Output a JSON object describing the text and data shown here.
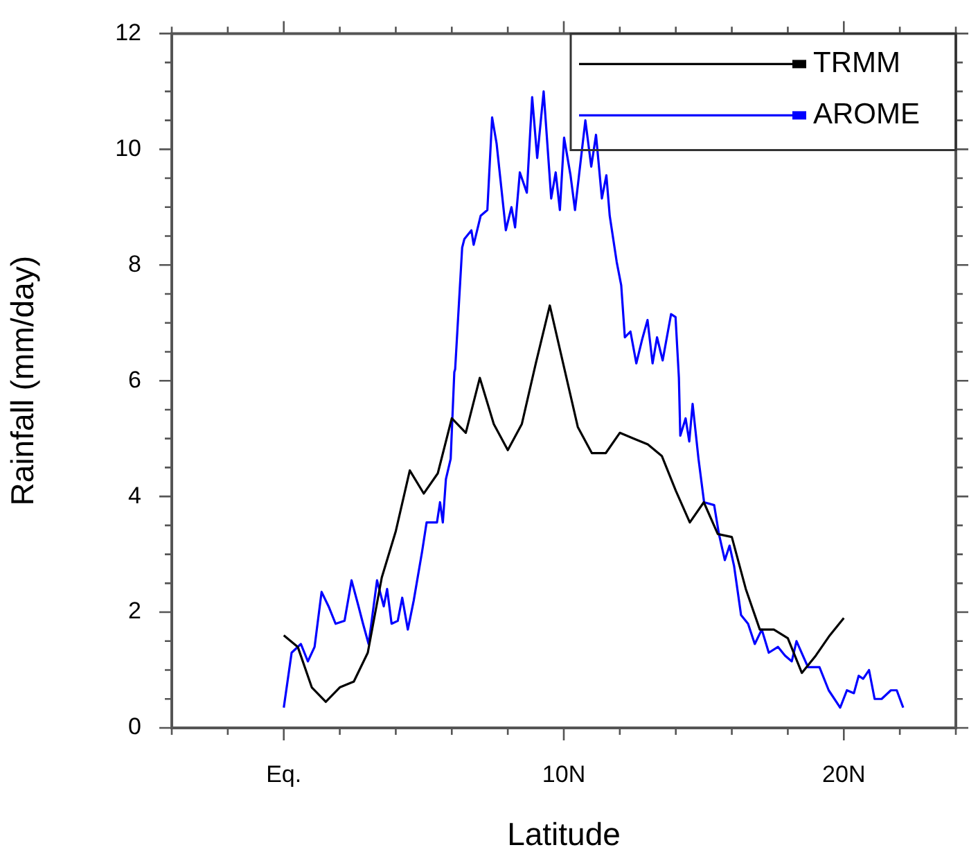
{
  "chart_data": {
    "type": "line",
    "xlabel": "Latitude",
    "ylabel": "Rainfall (mm/day)",
    "xlim": [
      -4,
      24
    ],
    "ylim": [
      0,
      12
    ],
    "xticks": [
      {
        "value": -4,
        "label": null
      },
      {
        "value": -2,
        "label": null
      },
      {
        "value": 0,
        "label": "Eq."
      },
      {
        "value": 2,
        "label": null
      },
      {
        "value": 4,
        "label": null
      },
      {
        "value": 6,
        "label": null
      },
      {
        "value": 8,
        "label": null
      },
      {
        "value": 10,
        "label": "10N"
      },
      {
        "value": 12,
        "label": null
      },
      {
        "value": 14,
        "label": null
      },
      {
        "value": 16,
        "label": null
      },
      {
        "value": 18,
        "label": null
      },
      {
        "value": 20,
        "label": "20N"
      },
      {
        "value": 22,
        "label": null
      },
      {
        "value": 24,
        "label": null
      }
    ],
    "yticks": [
      0,
      {
        "value": 0.5,
        "label": null
      },
      {
        "value": 1,
        "label": null
      },
      {
        "value": 1.5,
        "label": null
      },
      2,
      {
        "value": 2.5,
        "label": null
      },
      {
        "value": 3,
        "label": null
      },
      {
        "value": 3.5,
        "label": null
      },
      4,
      {
        "value": 4.5,
        "label": null
      },
      {
        "value": 5,
        "label": null
      },
      {
        "value": 5.5,
        "label": null
      },
      6,
      {
        "value": 6.5,
        "label": null
      },
      {
        "value": 7,
        "label": null
      },
      {
        "value": 7.5,
        "label": null
      },
      8,
      {
        "value": 8.5,
        "label": null
      },
      {
        "value": 9,
        "label": null
      },
      {
        "value": 9.5,
        "label": null
      },
      10,
      {
        "value": 10.5,
        "label": null
      },
      {
        "value": 11,
        "label": null
      },
      {
        "value": 11.5,
        "label": null
      },
      12
    ],
    "grid": false,
    "legend": "top right",
    "marker": "none",
    "line_style": "solid",
    "series": [
      {
        "name": "TRMM",
        "color": "#000000",
        "x": [
          0,
          0.5,
          1,
          1.5,
          2,
          2.5,
          3,
          3.5,
          4,
          4.5,
          5,
          5.5,
          6,
          6.5,
          7,
          7.5,
          8,
          8.5,
          9,
          9.5,
          10,
          10.5,
          11,
          11.5,
          12,
          12.5,
          13,
          13.5,
          14,
          14.5,
          15,
          15.5,
          16,
          16.5,
          17,
          17.5,
          18,
          18.5,
          19,
          19.5,
          20
        ],
        "values": [
          1.6,
          1.4,
          0.7,
          0.45,
          0.7,
          0.8,
          1.3,
          2.6,
          3.4,
          4.45,
          4.05,
          4.4,
          5.35,
          5.1,
          6.05,
          5.25,
          4.8,
          5.25,
          6.3,
          7.3,
          6.25,
          5.2,
          4.75,
          4.75,
          5.1,
          5.0,
          4.9,
          4.7,
          4.1,
          3.55,
          3.9,
          3.35,
          3.3,
          2.4,
          1.7,
          1.7,
          1.55,
          0.95,
          1.25,
          1.6,
          1.9
        ]
      },
      {
        "name": "AROME",
        "color": "#0000ff",
        "x": [
          0,
          0.28,
          0.61,
          0.86,
          1.1,
          1.35,
          1.6,
          1.85,
          2.17,
          2.42,
          2.67,
          2.83,
          3.03,
          3.33,
          3.57,
          3.69,
          3.85,
          4.07,
          4.23,
          4.43,
          4.64,
          4.94,
          5.1,
          5.47,
          5.58,
          5.68,
          5.79,
          5.96,
          6.09,
          6.12,
          6.37,
          6.45,
          6.7,
          6.78,
          7.03,
          7.27,
          7.44,
          7.6,
          7.93,
          8.13,
          8.26,
          8.43,
          8.68,
          8.87,
          9.05,
          9.28,
          9.55,
          9.71,
          9.86,
          10.01,
          10.24,
          10.4,
          10.77,
          10.98,
          11.15,
          11.36,
          11.52,
          11.64,
          11.89,
          12.05,
          12.18,
          12.38,
          12.59,
          12.79,
          12.99,
          13.17,
          13.33,
          13.53,
          13.83,
          13.99,
          14.11,
          14.16,
          14.35,
          14.48,
          14.6,
          14.81,
          15.01,
          15.37,
          15.54,
          15.75,
          15.92,
          16.08,
          16.33,
          16.58,
          16.82,
          17.07,
          17.32,
          17.65,
          17.9,
          18.14,
          18.31,
          18.72,
          19.13,
          19.46,
          19.87,
          20.11,
          20.36,
          20.53,
          20.69,
          20.9,
          21.1,
          21.35,
          21.68,
          21.89,
          22.12
        ],
        "values": [
          0.35,
          1.3,
          1.45,
          1.15,
          1.4,
          2.35,
          2.1,
          1.8,
          1.85,
          2.55,
          2.1,
          1.8,
          1.45,
          2.55,
          2.1,
          2.4,
          1.8,
          1.85,
          2.25,
          1.7,
          2.2,
          3.05,
          3.55,
          3.55,
          3.9,
          3.55,
          4.3,
          4.65,
          6.15,
          6.2,
          8.3,
          8.45,
          8.6,
          8.35,
          8.85,
          8.95,
          10.55,
          10.1,
          8.6,
          9.0,
          8.65,
          9.6,
          9.25,
          10.9,
          9.85,
          11.0,
          9.15,
          9.6,
          8.95,
          10.2,
          9.55,
          8.95,
          10.5,
          9.7,
          10.25,
          9.15,
          9.55,
          8.85,
          8.05,
          7.65,
          6.75,
          6.85,
          6.3,
          6.7,
          7.05,
          6.3,
          6.75,
          6.35,
          7.15,
          7.1,
          6.05,
          5.05,
          5.35,
          4.95,
          5.6,
          4.65,
          3.9,
          3.85,
          3.35,
          2.9,
          3.15,
          2.8,
          1.95,
          1.8,
          1.45,
          1.7,
          1.3,
          1.4,
          1.25,
          1.15,
          1.5,
          1.05,
          1.05,
          0.65,
          0.35,
          0.65,
          0.6,
          0.9,
          0.85,
          1.0,
          0.5,
          0.5,
          0.65,
          0.65,
          0.35
        ]
      }
    ]
  }
}
